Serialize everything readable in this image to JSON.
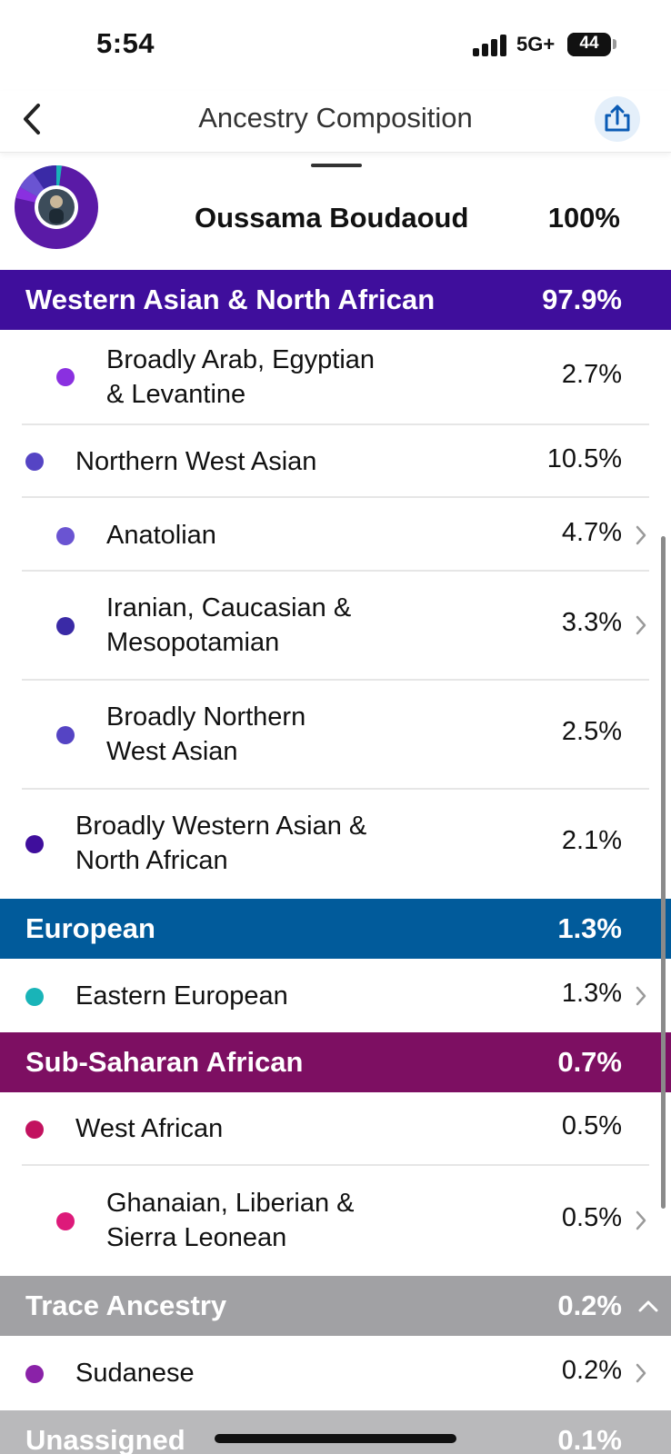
{
  "status_bar": {
    "time": "5:54",
    "network": "5G+",
    "battery": "44",
    "battery_level": 0.44
  },
  "header": {
    "title": "Ancestry Composition"
  },
  "profile": {
    "name": "Oussama Boudaoud",
    "percent": "100%"
  },
  "groups": [
    {
      "label": "Western Asian & North African",
      "percent": "97.9%",
      "color": "#3f0e9c",
      "rows": [
        {
          "label_lines": [
            "Broadly Arab, Egyptian",
            "& Levantine"
          ],
          "percent": "2.7%",
          "dot": "#8a30e0",
          "indent": 2,
          "chevron": false
        },
        {
          "label_lines": [
            "Northern West Asian"
          ],
          "percent": "10.5%",
          "dot": "#5544c4",
          "indent": 1,
          "chevron": false
        },
        {
          "label_lines": [
            "Anatolian"
          ],
          "percent": "4.7%",
          "dot": "#6a54d2",
          "indent": 2,
          "chevron": true
        },
        {
          "label_lines": [
            "Iranian, Caucasian &",
            "Mesopotamian"
          ],
          "percent": "3.3%",
          "dot": "#3a2aa6",
          "indent": 2,
          "chevron": true
        },
        {
          "label_lines": [
            "Broadly Northern",
            "West Asian"
          ],
          "percent": "2.5%",
          "dot": "#5544c4",
          "indent": 2,
          "chevron": false
        },
        {
          "label_lines": [
            "Broadly Western Asian &",
            "North African"
          ],
          "percent": "2.1%",
          "dot": "#3f0e9c",
          "indent": 1,
          "chevron": false
        }
      ]
    },
    {
      "label": "European",
      "percent": "1.3%",
      "color": "#015b9b",
      "rows": [
        {
          "label_lines": [
            "Eastern European"
          ],
          "percent": "1.3%",
          "dot": "#19b4b8",
          "indent": 1,
          "chevron": true
        }
      ]
    },
    {
      "label": "Sub-Saharan African",
      "percent": "0.7%",
      "color": "#7d0f62",
      "rows": [
        {
          "label_lines": [
            "West African"
          ],
          "percent": "0.5%",
          "dot": "#c2125f",
          "indent": 1,
          "chevron": false
        },
        {
          "label_lines": [
            "Ghanaian, Liberian &",
            "Sierra Leonean"
          ],
          "percent": "0.5%",
          "dot": "#dd1a7a",
          "indent": 2,
          "chevron": true
        }
      ]
    },
    {
      "label": "Trace Ancestry",
      "percent": "0.2%",
      "color": "#a1a1a4",
      "expanded": true,
      "rows": [
        {
          "label_lines": [
            "Sudanese"
          ],
          "percent": "0.2%",
          "dot": "#8a22a8",
          "indent": 1,
          "chevron": true
        }
      ]
    },
    {
      "label": "Unassigned",
      "percent": "0.1%",
      "color": "#b9b9bb",
      "rows": []
    }
  ],
  "icons": {
    "back": "chevron-left-icon",
    "share": "share-icon",
    "row_chevron": "chevron-right-icon",
    "collapse": "chevron-up-icon"
  }
}
